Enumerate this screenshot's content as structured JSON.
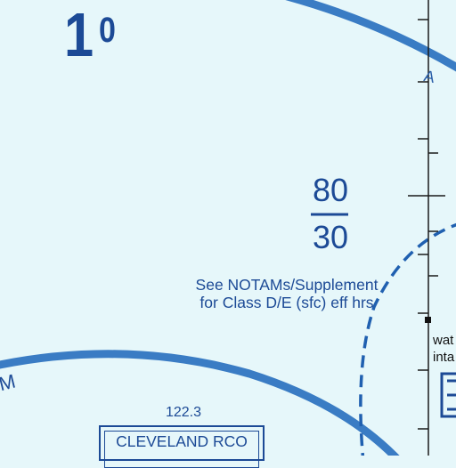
{
  "map": {
    "maximum_elevation_figure": {
      "major": "1",
      "minor": "0"
    },
    "airspace_altitudes": {
      "ceiling": "80",
      "floor": "30"
    },
    "notam_note": {
      "line1": "See NOTAMs/Supplement",
      "line2": "for Class D/E (sfc) eff hrs"
    },
    "rco": {
      "frequency": "122.3",
      "name": "CLEVELAND RCO"
    },
    "edge_fragments": {
      "left_arc_text": "M",
      "top_right_text": "A",
      "right_text_1": "wat",
      "right_text_2": "inta"
    },
    "colors": {
      "background": "#e6f7fa",
      "airspace_line": "#3a7cc4",
      "text": "#1c4a96",
      "meridian": "#1a1a1a"
    }
  }
}
